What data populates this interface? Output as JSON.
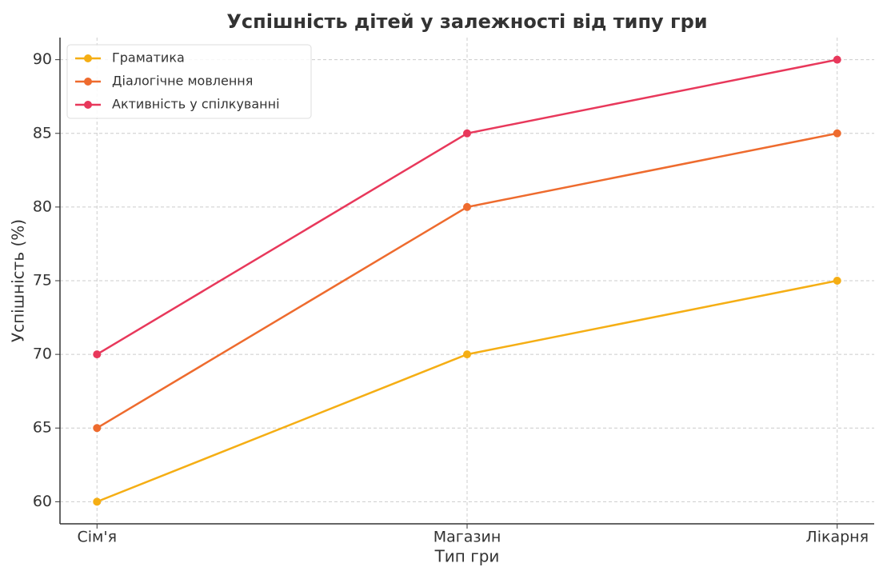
{
  "chart_data": {
    "type": "line",
    "title": "Успішність дітей у залежності від типу гри",
    "x_label": "Тип гри",
    "y_label": "Успішність (%)",
    "categories": [
      "Сім'я",
      "Магазин",
      "Лікарня"
    ],
    "series": [
      {
        "name": "Граматика",
        "color": "#f5ae14",
        "values": [
          60,
          70,
          75
        ]
      },
      {
        "name": "Діалогічне мовлення",
        "color": "#ee6b2e",
        "values": [
          65,
          80,
          85
        ]
      },
      {
        "name": "Активність у спілкуванні",
        "color": "#e8385b",
        "values": [
          70,
          85,
          90
        ]
      }
    ],
    "ylim": [
      58.5,
      91.5
    ],
    "yticks": [
      60,
      65,
      70,
      75,
      80,
      85,
      90
    ],
    "grid": true,
    "legend": "upper left"
  }
}
